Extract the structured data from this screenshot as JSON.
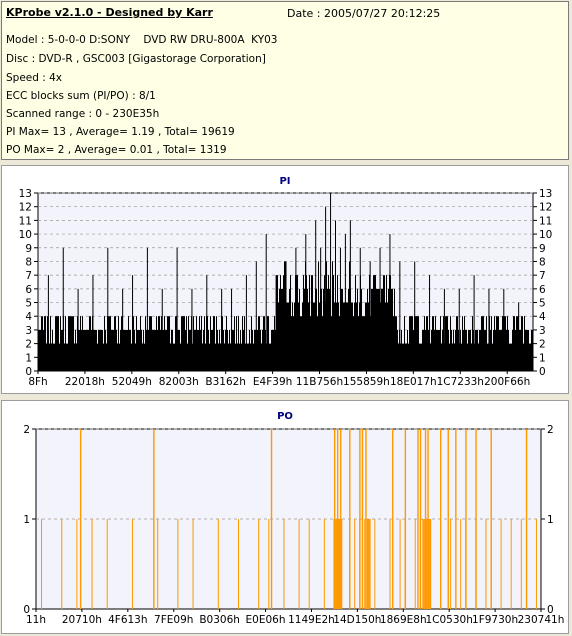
{
  "header": {
    "title": "KProbe v2.1.0 - Designed by Karr",
    "date": "Date : 2005/07/27 20:12:25",
    "lines": [
      "Model : 5-0-0-0 D:SONY    DVD RW DRU-800A  KY03",
      "Disc : DVD-R , GSC003 [Gigastorage Corporation]",
      "Speed : 4x",
      "ECC blocks sum (PI/PO) : 8/1",
      "Scanned range : 0 - 230E35h",
      "PI Max= 13 , Average= 1.19 , Total= 19619",
      "PO Max= 2 , Average= 0.01 , Total= 1319"
    ]
  },
  "colors": {
    "pi_bars": "#000000",
    "po_bars": "#ff9900",
    "plot_bg": "#f3f3fb",
    "title_color": "#000080",
    "grid": "#999999"
  },
  "chart_data": [
    {
      "type": "bar",
      "title": "PI",
      "ylim": [
        0,
        13
      ],
      "yticks": [
        0,
        1,
        2,
        3,
        4,
        5,
        6,
        7,
        8,
        9,
        10,
        11,
        12,
        13
      ],
      "xtick_labels": [
        "8Fh",
        "22018h",
        "52049h",
        "82003h",
        "B3162h",
        "E4F39h",
        "11B756h",
        "155859h",
        "18E017h",
        "1C7233h",
        "200F66h"
      ],
      "grid": "dashed horizontal",
      "peaks": [
        {
          "pos": 0.02,
          "value": 7
        },
        {
          "pos": 0.05,
          "value": 9
        },
        {
          "pos": 0.08,
          "value": 6
        },
        {
          "pos": 0.11,
          "value": 7
        },
        {
          "pos": 0.14,
          "value": 9
        },
        {
          "pos": 0.17,
          "value": 6
        },
        {
          "pos": 0.19,
          "value": 7
        },
        {
          "pos": 0.22,
          "value": 9
        },
        {
          "pos": 0.25,
          "value": 6
        },
        {
          "pos": 0.28,
          "value": 9
        },
        {
          "pos": 0.31,
          "value": 6
        },
        {
          "pos": 0.34,
          "value": 7
        },
        {
          "pos": 0.37,
          "value": 6
        },
        {
          "pos": 0.39,
          "value": 6
        },
        {
          "pos": 0.42,
          "value": 7
        },
        {
          "pos": 0.44,
          "value": 8
        },
        {
          "pos": 0.46,
          "value": 10
        },
        {
          "pos": 0.48,
          "value": 7
        },
        {
          "pos": 0.5,
          "value": 8
        },
        {
          "pos": 0.52,
          "value": 9
        },
        {
          "pos": 0.54,
          "value": 10
        },
        {
          "pos": 0.56,
          "value": 11
        },
        {
          "pos": 0.57,
          "value": 9
        },
        {
          "pos": 0.58,
          "value": 12
        },
        {
          "pos": 0.59,
          "value": 13
        },
        {
          "pos": 0.6,
          "value": 11
        },
        {
          "pos": 0.61,
          "value": 9
        },
        {
          "pos": 0.62,
          "value": 10
        },
        {
          "pos": 0.63,
          "value": 11
        },
        {
          "pos": 0.65,
          "value": 9
        },
        {
          "pos": 0.67,
          "value": 8
        },
        {
          "pos": 0.69,
          "value": 9
        },
        {
          "pos": 0.71,
          "value": 10
        },
        {
          "pos": 0.73,
          "value": 8
        },
        {
          "pos": 0.76,
          "value": 8
        },
        {
          "pos": 0.79,
          "value": 7
        },
        {
          "pos": 0.82,
          "value": 6
        },
        {
          "pos": 0.85,
          "value": 6
        },
        {
          "pos": 0.88,
          "value": 7
        },
        {
          "pos": 0.91,
          "value": 6
        },
        {
          "pos": 0.94,
          "value": 6
        },
        {
          "pos": 0.97,
          "value": 5
        }
      ]
    },
    {
      "type": "bar",
      "title": "PO",
      "ylim": [
        0,
        2
      ],
      "yticks": [
        0,
        1,
        2
      ],
      "xtick_labels": [
        "11h",
        "20710h",
        "4F613h",
        "7FE09h",
        "B0306h",
        "E0E06h",
        "1149E2h",
        "14D150h",
        "1869E8h",
        "1C0530h",
        "1F9730h",
        "230741h"
      ],
      "grid": "dashed horizontal",
      "ones_pos": [
        0.01,
        0.05,
        0.08,
        0.11,
        0.14,
        0.19,
        0.24,
        0.28,
        0.31,
        0.36,
        0.4,
        0.44,
        0.46,
        0.49,
        0.52,
        0.54,
        0.57,
        0.6,
        0.62,
        0.63,
        0.64,
        0.65,
        0.66,
        0.67,
        0.7,
        0.72,
        0.73,
        0.75,
        0.76,
        0.78,
        0.8,
        0.82,
        0.84,
        0.85,
        0.87,
        0.89,
        0.9,
        0.92,
        0.94,
        0.96,
        0.99
      ],
      "twos_pos": [
        0.087,
        0.232,
        0.465,
        0.59,
        0.596,
        0.602,
        0.62,
        0.64,
        0.645,
        0.652,
        0.705,
        0.73,
        0.755,
        0.76,
        0.77,
        0.775,
        0.8,
        0.815,
        0.83,
        0.85,
        0.87,
        0.9,
        0.97
      ],
      "dense_ranges": [
        [
          0.589,
          0.605
        ],
        [
          0.655,
          0.66
        ],
        [
          0.765,
          0.782
        ]
      ]
    }
  ]
}
